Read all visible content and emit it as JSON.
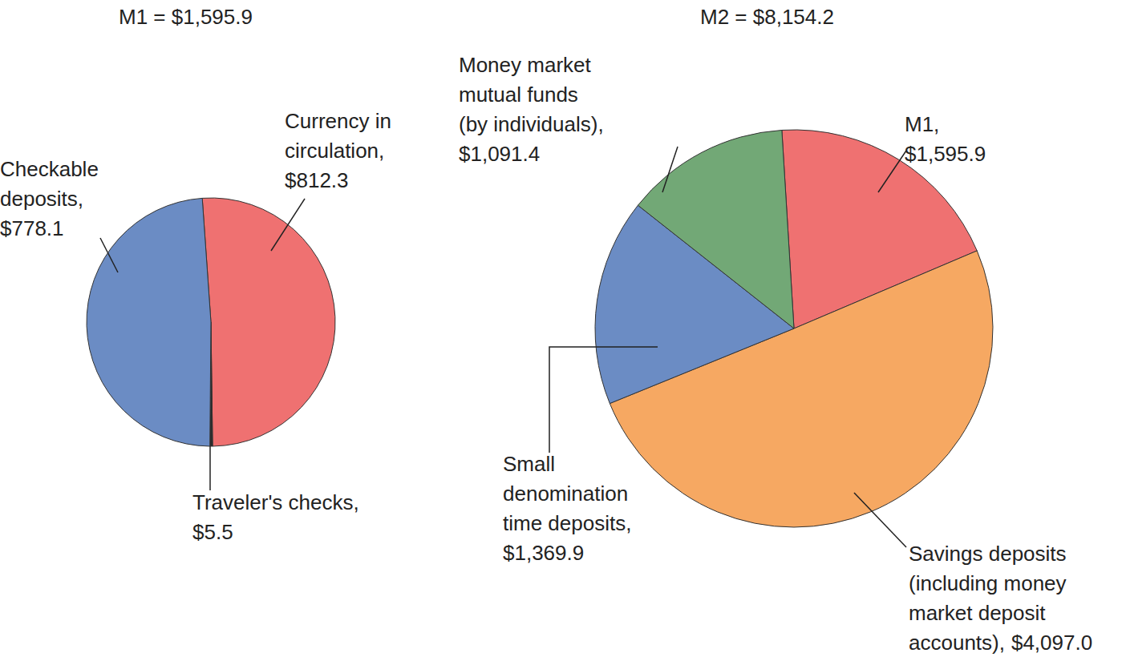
{
  "chart_data": [
    {
      "type": "pie",
      "title": "M1 = $1,595.9",
      "categories": [
        "Currency in circulation,",
        "Traveler's checks,",
        "Checkable deposits,"
      ],
      "values": [
        812.3,
        5.5,
        778.1
      ],
      "value_labels": [
        "$812.3",
        "$5.5",
        "$778.1"
      ],
      "colors": [
        "#ef7171",
        "#2b2b2b",
        "#6b8cc4"
      ],
      "data_labels": true
    },
    {
      "type": "pie",
      "title": "M2 = $8,154.2",
      "categories": [
        "M1,",
        "Savings deposits (including money market deposit accounts),",
        "Small denomination time deposits,",
        "Money market mutual funds (by individuals),"
      ],
      "values": [
        1595.9,
        4097.0,
        1369.9,
        1091.4
      ],
      "value_labels": [
        "$1,595.9",
        "$4,097.0",
        "$1,369.9",
        "$1,091.4"
      ],
      "colors": [
        "#ef7171",
        "#f6a862",
        "#6b8cc4",
        "#72a876"
      ],
      "data_labels": true
    }
  ]
}
